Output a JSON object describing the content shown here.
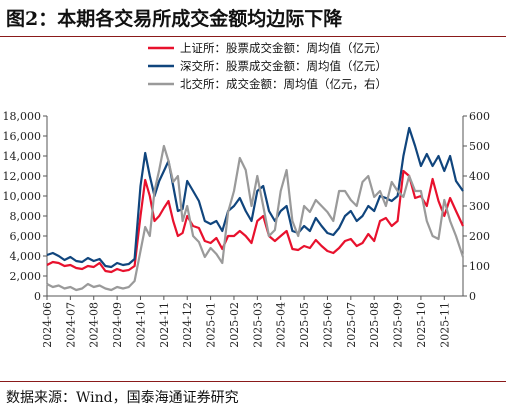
{
  "title": "图2：本期各交易所成交金额均边际下降",
  "source": "数据来源：Wind，国泰海通证券研究",
  "chart_data": {
    "type": "line",
    "x_ticks": [
      "2024-06",
      "2024-07",
      "2024-08",
      "2024-09",
      "2024-10",
      "2024-11",
      "2024-12",
      "2025-01",
      "2025-02",
      "2025-03",
      "2025-04",
      "2025-05",
      "2025-06",
      "2025-07",
      "2025-08",
      "2025-09",
      "2025-10",
      "2025-11"
    ],
    "x_range": [
      0,
      17.8
    ],
    "ylim_left": [
      0,
      18000
    ],
    "ylim_right": [
      0,
      600
    ],
    "y_ticks_left": [
      "0",
      "2,000",
      "4,000",
      "6,000",
      "8,000",
      "10,000",
      "12,000",
      "14,000",
      "16,000",
      "18,000"
    ],
    "y_ticks_right": [
      "0",
      "100",
      "200",
      "300",
      "400",
      "500",
      "600"
    ],
    "colors": {
      "sse": "#e8112d",
      "szse": "#10457d",
      "bse": "#9a9a9a"
    },
    "series": [
      {
        "name": "上证所：股票成交金额：周均值（亿元）",
        "axis": "left",
        "color_key": "sse",
        "x": [
          0,
          0.25,
          0.5,
          0.75,
          1,
          1.25,
          1.5,
          1.75,
          2,
          2.25,
          2.5,
          2.75,
          3,
          3.25,
          3.5,
          3.75,
          4,
          4.2,
          4.4,
          4.6,
          4.8,
          5,
          5.2,
          5.4,
          5.6,
          5.8,
          6,
          6.25,
          6.5,
          6.75,
          7,
          7.25,
          7.5,
          7.75,
          8,
          8.25,
          8.5,
          8.75,
          9,
          9.25,
          9.5,
          9.75,
          10,
          10.25,
          10.5,
          10.75,
          11,
          11.25,
          11.5,
          11.75,
          12,
          12.25,
          12.5,
          12.75,
          13,
          13.25,
          13.5,
          13.75,
          14,
          14.25,
          14.5,
          14.75,
          15,
          15.25,
          15.5,
          15.75,
          16,
          16.25,
          16.5,
          16.75,
          17,
          17.25,
          17.5,
          17.8
        ],
        "values": [
          3100,
          3400,
          3300,
          3000,
          3100,
          2800,
          2700,
          3000,
          2900,
          3300,
          2500,
          2400,
          2700,
          2500,
          2600,
          3000,
          8000,
          11600,
          10000,
          7500,
          8000,
          8800,
          9500,
          7500,
          6000,
          6300,
          8000,
          7000,
          6800,
          5500,
          5300,
          5800,
          4700,
          6000,
          6000,
          6500,
          6000,
          5300,
          7500,
          8000,
          6000,
          5500,
          6000,
          6500,
          4700,
          4600,
          5000,
          4800,
          5600,
          5000,
          4500,
          4300,
          4800,
          5500,
          5700,
          5000,
          5300,
          6200,
          5500,
          7500,
          7800,
          7000,
          7500,
          12500,
          12000,
          9800,
          10000,
          9000,
          11700,
          9500,
          8000,
          9800,
          8500,
          7000
        ]
      },
      {
        "name": "深交所：股票成交金额：周均值（亿元）",
        "axis": "left",
        "color_key": "szse",
        "x": [
          0,
          0.25,
          0.5,
          0.75,
          1,
          1.25,
          1.5,
          1.75,
          2,
          2.25,
          2.5,
          2.75,
          3,
          3.25,
          3.5,
          3.75,
          4,
          4.2,
          4.4,
          4.6,
          4.8,
          5,
          5.2,
          5.4,
          5.6,
          5.8,
          6,
          6.25,
          6.5,
          6.75,
          7,
          7.25,
          7.5,
          7.75,
          8,
          8.25,
          8.5,
          8.75,
          9,
          9.25,
          9.5,
          9.75,
          10,
          10.25,
          10.5,
          10.75,
          11,
          11.25,
          11.5,
          11.75,
          12,
          12.25,
          12.5,
          12.75,
          13,
          13.25,
          13.5,
          13.75,
          14,
          14.25,
          14.5,
          14.75,
          15,
          15.25,
          15.5,
          15.75,
          16,
          16.25,
          16.5,
          16.75,
          17,
          17.25,
          17.5,
          17.8
        ],
        "values": [
          4100,
          4300,
          4000,
          3600,
          3900,
          3500,
          3400,
          3800,
          3500,
          3700,
          3000,
          2900,
          3300,
          3100,
          3200,
          3700,
          11000,
          14300,
          12000,
          10000,
          11500,
          12500,
          13500,
          11000,
          8500,
          8700,
          11500,
          10500,
          9500,
          7500,
          7200,
          7500,
          6500,
          8500,
          9000,
          9800,
          8500,
          7500,
          10500,
          11000,
          8500,
          7500,
          8500,
          9000,
          6500,
          6300,
          7000,
          6500,
          7800,
          7000,
          6300,
          6100,
          6800,
          8000,
          8500,
          7500,
          8000,
          9000,
          8500,
          10000,
          9800,
          9500,
          10000,
          14000,
          16800,
          15000,
          13000,
          14200,
          13000,
          14000,
          12500,
          14000,
          11500,
          10500
        ]
      },
      {
        "name": "北交所：成交金额：周均值（亿元，右）",
        "axis": "right",
        "color_key": "bse",
        "x": [
          0,
          0.25,
          0.5,
          0.75,
          1,
          1.25,
          1.5,
          1.75,
          2,
          2.25,
          2.5,
          2.75,
          3,
          3.25,
          3.5,
          3.75,
          4,
          4.2,
          4.4,
          4.6,
          4.8,
          5,
          5.2,
          5.4,
          5.6,
          5.8,
          6,
          6.25,
          6.5,
          6.75,
          7,
          7.25,
          7.5,
          7.75,
          8,
          8.25,
          8.5,
          8.75,
          9,
          9.25,
          9.5,
          9.75,
          10,
          10.25,
          10.5,
          10.75,
          11,
          11.25,
          11.5,
          11.75,
          12,
          12.25,
          12.5,
          12.75,
          13,
          13.25,
          13.5,
          13.75,
          14,
          14.25,
          14.5,
          14.75,
          15,
          15.25,
          15.5,
          15.75,
          16,
          16.25,
          16.5,
          16.75,
          17,
          17.25,
          17.5,
          17.8
        ],
        "values": [
          40,
          30,
          35,
          25,
          30,
          20,
          25,
          40,
          30,
          35,
          25,
          20,
          30,
          25,
          30,
          50,
          150,
          230,
          200,
          350,
          420,
          500,
          450,
          380,
          400,
          250,
          300,
          200,
          180,
          130,
          160,
          140,
          110,
          280,
          350,
          460,
          420,
          300,
          400,
          300,
          200,
          220,
          350,
          420,
          250,
          200,
          300,
          280,
          320,
          300,
          280,
          250,
          350,
          350,
          320,
          300,
          380,
          400,
          330,
          350,
          300,
          380,
          350,
          330,
          400,
          350,
          350,
          250,
          200,
          190,
          320,
          250,
          200,
          130
        ]
      }
    ]
  }
}
